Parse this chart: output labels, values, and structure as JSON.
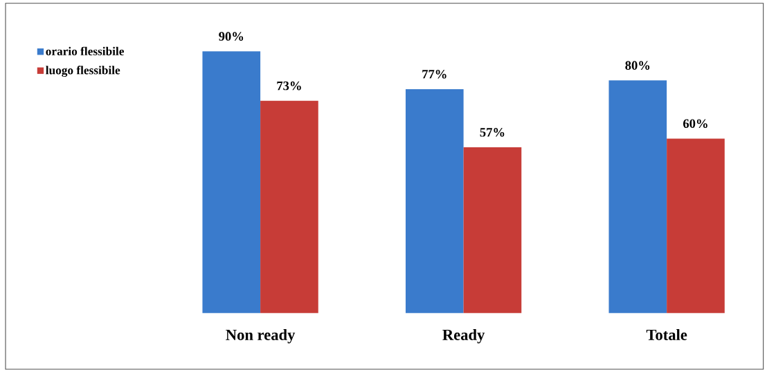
{
  "chart_data": {
    "type": "bar",
    "categories": [
      "Non ready",
      "Ready",
      "Totale"
    ],
    "series": [
      {
        "name": "orario flessibile",
        "color": "#3a7bcc",
        "values": [
          90,
          77,
          80
        ],
        "value_labels": [
          "90%",
          "77%",
          "80%"
        ]
      },
      {
        "name": "luogo flessibile",
        "color": "#c73c37",
        "values": [
          73,
          57,
          60
        ],
        "value_labels": [
          "73%",
          "57%",
          "60%"
        ]
      }
    ],
    "legend": "left"
  }
}
